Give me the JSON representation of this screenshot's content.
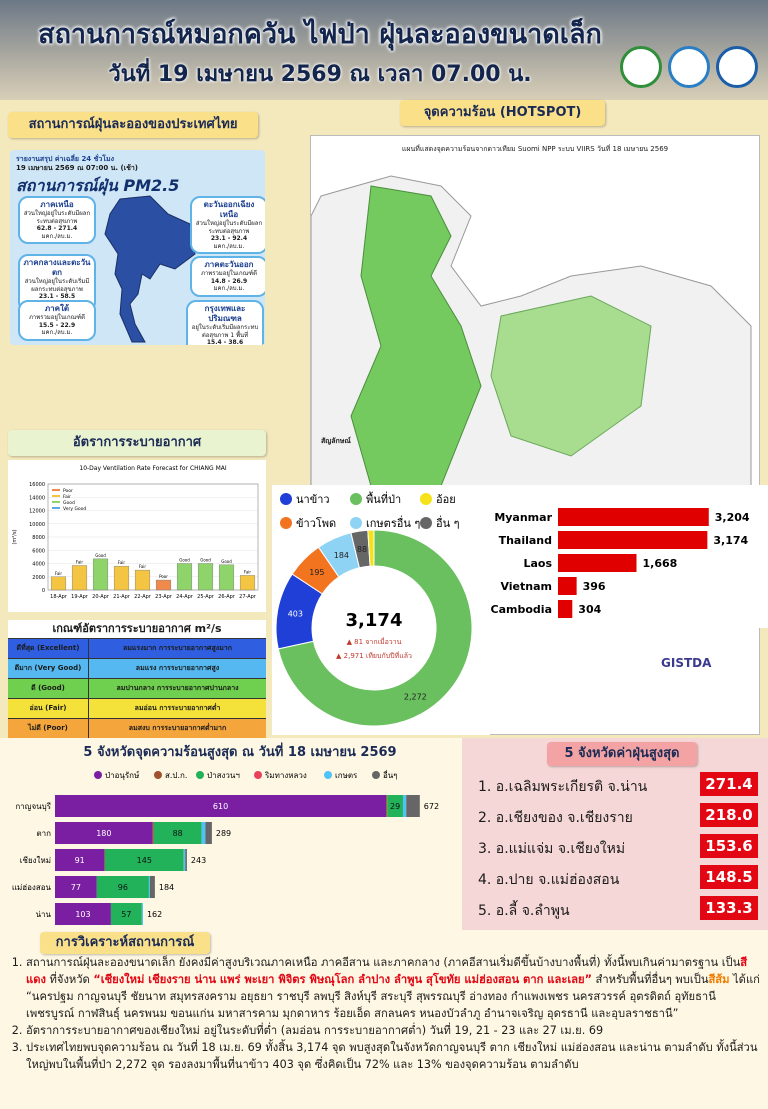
{
  "header": {
    "title": "สถานการณ์หมอกควัน ไฟป่า ฝุ่นละอองขนาดเล็ก",
    "subtitle": "วันที่ 19 เมษายน 2569 ณ เวลา 07.00 น."
  },
  "pm_panel": {
    "title": "สถานการณ์ฝุ่นละอองของประเทศไทย",
    "report_label": "รายงานสรุป ค่าเฉลี่ย 24 ชั่วโมง",
    "report_date": "19 เมษายน 2569 ณ 07:00 น. (เช้า)",
    "heading": "สถานการณ์ฝุ่น PM2.5",
    "regions": [
      {
        "name": "ภาคเหนือ",
        "status": "ส่วนใหญ่อยู่ในระดับมีผลกระทบต่อสุขภาพ",
        "range": "62.8 - 271.4",
        "unit": "มคก./ลบ.ม."
      },
      {
        "name": "ตะวันออกเฉียงเหนือ",
        "status": "ส่วนใหญ่อยู่ในระดับมีผลกระทบต่อสุขภาพ",
        "range": "23.1 - 92.4",
        "unit": "มคก./ลบ.ม."
      },
      {
        "name": "ภาคกลางและตะวันตก",
        "status": "ส่วนใหญ่อยู่ในระดับเริ่มมีผลกระทบต่อสุขภาพ",
        "range": "23.1 - 58.5",
        "unit": "มคก./ลบ.ม."
      },
      {
        "name": "ภาคตะวันออก",
        "status": "ภาพรวมอยู่ในเกณฑ์ดี",
        "range": "14.8 - 26.9",
        "unit": "มคก./ลบ.ม."
      },
      {
        "name": "ภาคใต้",
        "status": "ภาพรวมอยู่ในเกณฑ์ดี",
        "range": "15.5 - 22.9",
        "unit": "มคก./ลบ.ม."
      },
      {
        "name": "กรุงเทพและปริมณฑล",
        "status": "อยู่ในระดับเริ่มมีผลกระทบต่อสุขภาพ 1 พื้นที่",
        "range": "15.4 - 38.6",
        "unit": "มคก./ลบ.ม."
      }
    ]
  },
  "hotspot": {
    "title": "จุดความร้อน (HOTSPOT)",
    "map_title": "แผนที่แสดงจุดความร้อนจากดาวเทียม Suomi NPP ระบบ VIIRS  วันที่ 18 เมษายน 2569",
    "legend_title": "สัญลักษณ์",
    "logo": "GISTDA"
  },
  "ventilation": {
    "title": "อัตราการระบายอากาศ",
    "criteria_title": "เกณฑ์อัตราการระบายอากาศ m²/s",
    "criteria": [
      [
        "ดีที่สุด (Excellent)",
        "ลมแรงมาก การระบายอากาศสูงมาก"
      ],
      [
        "ดีมาก (Very Good)",
        "ลมแรง การระบายอากาศสูง"
      ],
      [
        "ดี (Good)",
        "ลมปานกลาง การระบายอากาศปานกลาง"
      ],
      [
        "อ่อน (Fair)",
        "ลมอ่อน การระบายอากาศต่ำ"
      ],
      [
        "ไม่ดี (Poor)",
        "ลมสงบ การระบายอากาศต่ำมาก"
      ]
    ]
  },
  "chart_data": [
    {
      "type": "bar",
      "title": "10-Day Ventilation Rate Forecast for CHIANG MAI",
      "y_label": "(m²/s)",
      "categories": [
        "18-Apr",
        "19-Apr",
        "20-Apr",
        "21-Apr",
        "22-Apr",
        "23-Apr",
        "24-Apr",
        "25-Apr",
        "26-Apr",
        "27-Apr"
      ],
      "values": [
        2000,
        3700,
        4700,
        3600,
        3000,
        1500,
        4000,
        4000,
        3800,
        2200
      ],
      "bar_labels": [
        "Fair",
        "Fair",
        "Good",
        "Fair",
        "Fair",
        "Poor",
        "Good",
        "Good",
        "Good",
        "Fair"
      ],
      "colors": [
        "#f4c542",
        "#f4c542",
        "#8fd36b",
        "#f4c542",
        "#f4c542",
        "#f08a4b",
        "#8fd36b",
        "#8fd36b",
        "#8fd36b",
        "#f4c542"
      ],
      "legend": [
        {
          "name": "Poor",
          "color": "#f08a4b"
        },
        {
          "name": "Fair",
          "color": "#f4c542"
        },
        {
          "name": "Good",
          "color": "#8fd36b"
        },
        {
          "name": "Very Good",
          "color": "#5aa9e6"
        }
      ],
      "ylim": [
        0,
        16000
      ],
      "yticks": [
        0,
        2000,
        4000,
        6000,
        8000,
        10000,
        12000,
        14000,
        16000
      ]
    },
    {
      "type": "donut",
      "categories": [
        "พื้นที่ป่า",
        "นาข้าว",
        "ข้าวโพด",
        "เกษตรอื่น ๆ",
        "อื่น ๆ",
        "อ้อย"
      ],
      "values": [
        2272,
        403,
        195,
        184,
        88,
        32
      ],
      "value_labels": [
        "2,272",
        "403",
        "195",
        "184",
        "88",
        null
      ],
      "colors": [
        "#6abf5e",
        "#1f3fd6",
        "#f2741f",
        "#8fd3f4",
        "#666666",
        "#f5e21b"
      ],
      "center_label": "3,174",
      "notes": [
        "▲ 81 จากเมื่อวาน",
        "▲ 2,971 เทียบกับปีที่แล้ว"
      ]
    },
    {
      "type": "hbar",
      "categories": [
        "Myanmar",
        "Thailand",
        "Laos",
        "Vietnam",
        "Cambodia"
      ],
      "values": [
        3204,
        3174,
        1668,
        396,
        304
      ],
      "value_labels": [
        "3,204",
        "3,174",
        "1,668",
        "396",
        "304"
      ],
      "color": "#e00000",
      "xlim": [
        0,
        3400
      ]
    },
    {
      "type": "stacked_hbar",
      "title": "5 จังหวัดจุดความร้อนสูงสุด ณ วันที่ 18 เมษายน 2569",
      "categories": [
        "กาญจนบุรี",
        "ตาก",
        "เชียงใหม่",
        "แม่ฮ่องสอน",
        "น่าน"
      ],
      "series": [
        {
          "name": "ป่าอนุรักษ์",
          "color": "#7b1fa2",
          "values": [
            610,
            180,
            91,
            77,
            103
          ]
        },
        {
          "name": "ส.ป.ก.",
          "color": "#a0522d",
          "values": [
            2,
            2,
            1,
            0,
            0
          ]
        },
        {
          "name": "ป่าสงวนฯ",
          "color": "#22b35a",
          "values": [
            29,
            88,
            145,
            96,
            57
          ]
        },
        {
          "name": "ริมทางหลวง",
          "color": "#e8415a",
          "values": [
            0,
            0,
            0,
            0,
            0
          ]
        },
        {
          "name": "เกษตร",
          "color": "#4fc3f7",
          "values": [
            6,
            7,
            3,
            2,
            2
          ]
        },
        {
          "name": "อื่นๆ",
          "color": "#666666",
          "values": [
            25,
            12,
            3,
            9,
            0
          ]
        }
      ],
      "totals": [
        672,
        289,
        243,
        184,
        162
      ],
      "xlim": [
        0,
        700
      ]
    }
  ],
  "pm_top5": {
    "title": "5 จังหวัดค่าฝุ่นสูงสุด",
    "items": [
      [
        "1. อ.เฉลิมพระเกียรติ จ.น่าน",
        "271.4"
      ],
      [
        "2. อ.เชียงของ จ.เชียงราย",
        "218.0"
      ],
      [
        "3. อ.แม่แจ่ม จ.เชียงใหม่",
        "153.6"
      ],
      [
        "4. อ.ปาย จ.แม่ฮ่องสอน",
        "148.5"
      ],
      [
        "5. อ.ลี้ จ.ลำพูน",
        "133.3"
      ]
    ]
  },
  "analysis": {
    "title": "การวิเคราะห์สถานการณ์",
    "items": [
      [
        "สถานการณ์ฝุ่นละอองขนาดเล็ก ยังคงมีค่าสูงบริเวณภาคเหนือ ภาคอีสาน และภาคกลาง (ภาคอีสานเริ่มดีขึ้นบ้างบางพื้นที่) ทั้งนี้พบเกินค่ามาตรฐาน เป็น",
        "สีแดง",
        " ที่จังหวัด ",
        "“เชียงใหม่ เชียงราย น่าน แพร่ พะเยา พิจิตร พิษณุโลก ลำปาง ลำพูน สุโขทัย แม่ฮ่องสอน ตาก และเลย”",
        " สำหรับพื้นที่อื่นๆ พบเป็น",
        "สีส้ม",
        " ได้แก่ “นครปฐม กาญจนบุรี ชัยนาท สมุทรสงคราม อยุธยา ราชบุรี ลพบุรี สิงห์บุรี สระบุรี สุพรรณบุรี อ่างทอง กำแพงเพชร นครสวรรค์ อุตรดิตถ์ อุทัยธานี เพชรบูรณ์ กาฬสินธุ์ นครพนม ขอนแก่น มหาสารคาม มุกดาหาร ร้อยเอ็ด สกลนคร หนองบัวลำภู อำนาจเจริญ อุดรธานี และอุบลราชธานี”"
      ],
      [
        "อัตราการระบายอากาศของเชียงใหม่ อยู่ในระดับที่ต่ำ (ลมอ่อน การระบายอากาศต่ำ) วันที่ 19, 21 - 23 และ 27 เม.ย. 69"
      ],
      [
        "ประเทศไทยพบจุดความร้อน ณ วันที่ 18 เม.ย. 69 ทั้งสิ้น 3,174 จุด พบสูงสุดในจังหวัดกาญจนบุรี ตาก เชียงใหม่ แม่ฮ่องสอน และน่าน ตามลำดับ ทั้งนี้ส่วนใหญ่พบในพื้นที่ป่า 2,272 จุด รองลงมาพื้นที่นาข้าว 403 จุด ซึ่งคิดเป็น 72% และ 13% ของจุดความร้อน ตามลำดับ"
      ]
    ]
  }
}
